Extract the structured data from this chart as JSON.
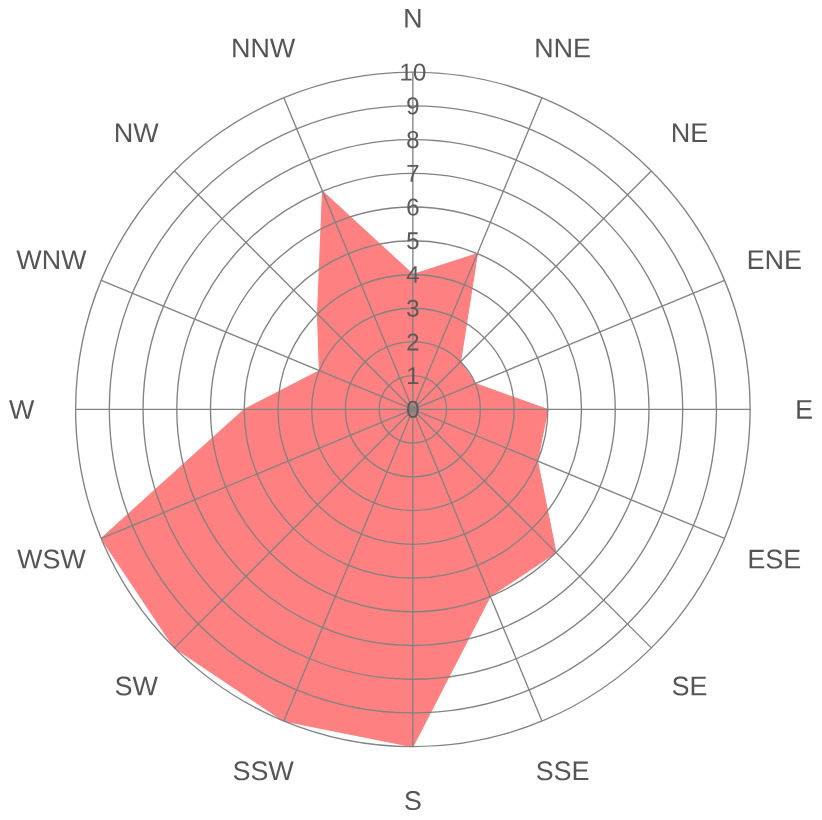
{
  "chart_data": {
    "type": "radar",
    "categories": [
      "N",
      "NNE",
      "NE",
      "ENE",
      "E",
      "ESE",
      "SE",
      "SSE",
      "S",
      "SSW",
      "SW",
      "WSW",
      "W",
      "WNW",
      "NW",
      "NNW"
    ],
    "series": [
      {
        "color": "#ff8080",
        "values": [
          4,
          5,
          2,
          2,
          4,
          4,
          6,
          6,
          10,
          10,
          10,
          10,
          5,
          3,
          4,
          7
        ]
      }
    ],
    "ylim": [
      0,
      10
    ],
    "yticks": [
      0,
      1,
      2,
      3,
      4,
      5,
      6,
      7,
      8,
      9,
      10
    ],
    "grid": true,
    "marker": "none"
  }
}
